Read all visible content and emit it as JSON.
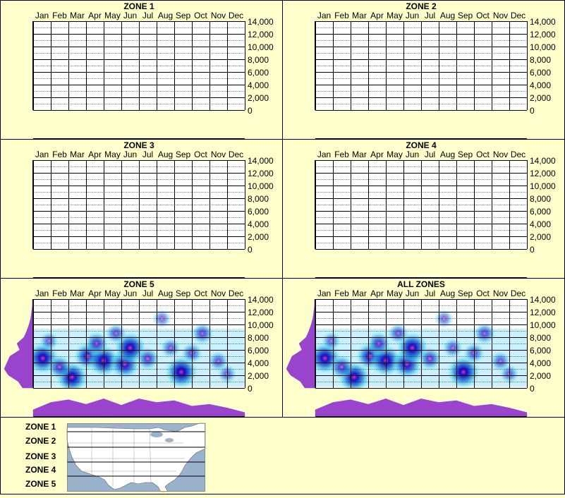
{
  "months": [
    "Jan",
    "Feb",
    "Mar",
    "Apr",
    "May",
    "Jun",
    "Jul",
    "Aug",
    "Sep",
    "Oct",
    "Nov",
    "Dec"
  ],
  "yticks": [
    "14,000",
    "12,000",
    "10,000",
    "8,000",
    "6,000",
    "4,000",
    "2,000",
    "0"
  ],
  "chart_data": [
    {
      "type": "heatmap",
      "title": "ZONE 1",
      "ylim": [
        0,
        14000
      ],
      "hotspots": [],
      "month_profile": [],
      "elev_profile": []
    },
    {
      "type": "heatmap",
      "title": "ZONE 2",
      "ylim": [
        0,
        14000
      ],
      "hotspots": [],
      "month_profile": [],
      "elev_profile": []
    },
    {
      "type": "heatmap",
      "title": "ZONE 3",
      "ylim": [
        0,
        14000
      ],
      "hotspots": [],
      "month_profile": [],
      "elev_profile": []
    },
    {
      "type": "heatmap",
      "title": "ZONE 4",
      "ylim": [
        0,
        14000
      ],
      "hotspots": [],
      "month_profile": [],
      "elev_profile": []
    },
    {
      "type": "heatmap",
      "title": "ZONE 5",
      "ylim": [
        0,
        14000
      ],
      "hotspots": [
        {
          "month": 0.55,
          "elev": 4700,
          "level": 0.95
        },
        {
          "month": 2.2,
          "elev": 1700,
          "level": 0.95
        },
        {
          "month": 3.1,
          "elev": 5000,
          "level": 0.75
        },
        {
          "month": 4.0,
          "elev": 4300,
          "level": 0.95
        },
        {
          "month": 5.2,
          "elev": 3800,
          "level": 0.85
        },
        {
          "month": 5.5,
          "elev": 6300,
          "level": 0.95
        },
        {
          "month": 8.4,
          "elev": 2500,
          "level": 1.0
        },
        {
          "month": 3.6,
          "elev": 7000,
          "level": 0.55
        },
        {
          "month": 7.3,
          "elev": 10900,
          "level": 0.3
        },
        {
          "month": 9.6,
          "elev": 8600,
          "level": 0.45
        },
        {
          "month": 1.5,
          "elev": 3300,
          "level": 0.55
        },
        {
          "month": 6.5,
          "elev": 4600,
          "level": 0.5
        },
        {
          "month": 10.5,
          "elev": 4200,
          "level": 0.35
        },
        {
          "month": 9.0,
          "elev": 5500,
          "level": 0.4
        },
        {
          "month": 0.9,
          "elev": 7400,
          "level": 0.3
        },
        {
          "month": 11.0,
          "elev": 2200,
          "level": 0.3
        },
        {
          "month": 4.7,
          "elev": 8600,
          "level": 0.4
        },
        {
          "month": 7.8,
          "elev": 6300,
          "level": 0.35
        }
      ],
      "month_profile": [
        0.35,
        0.75,
        0.9,
        0.65,
        0.95,
        0.6,
        0.95,
        0.75,
        0.85,
        0.55,
        0.65,
        0.45,
        0.2
      ],
      "elev_profile": [
        0.35,
        0.5,
        0.85,
        1.0,
        0.9,
        0.8,
        0.45,
        0.55,
        0.3,
        0.2,
        0.12,
        0.06,
        0.03,
        0.0,
        0.0
      ]
    },
    {
      "type": "heatmap",
      "title": "ALL ZONES",
      "ylim": [
        0,
        14000
      ],
      "hotspots": [
        {
          "month": 0.55,
          "elev": 4700,
          "level": 0.95
        },
        {
          "month": 2.2,
          "elev": 1700,
          "level": 0.95
        },
        {
          "month": 3.1,
          "elev": 5000,
          "level": 0.75
        },
        {
          "month": 4.0,
          "elev": 4300,
          "level": 0.95
        },
        {
          "month": 5.2,
          "elev": 3800,
          "level": 0.85
        },
        {
          "month": 5.5,
          "elev": 6300,
          "level": 0.95
        },
        {
          "month": 8.4,
          "elev": 2500,
          "level": 1.0
        },
        {
          "month": 3.6,
          "elev": 7000,
          "level": 0.55
        },
        {
          "month": 7.3,
          "elev": 10900,
          "level": 0.3
        },
        {
          "month": 9.6,
          "elev": 8600,
          "level": 0.45
        },
        {
          "month": 1.5,
          "elev": 3300,
          "level": 0.55
        },
        {
          "month": 6.5,
          "elev": 4600,
          "level": 0.5
        },
        {
          "month": 10.5,
          "elev": 4200,
          "level": 0.35
        },
        {
          "month": 9.0,
          "elev": 5500,
          "level": 0.4
        },
        {
          "month": 0.9,
          "elev": 7400,
          "level": 0.3
        },
        {
          "month": 11.0,
          "elev": 2200,
          "level": 0.3
        },
        {
          "month": 4.7,
          "elev": 8600,
          "level": 0.4
        },
        {
          "month": 7.8,
          "elev": 6300,
          "level": 0.35
        }
      ],
      "month_profile": [
        0.35,
        0.75,
        0.9,
        0.65,
        0.95,
        0.6,
        0.95,
        0.75,
        0.85,
        0.55,
        0.65,
        0.45,
        0.2
      ],
      "elev_profile": [
        0.35,
        0.5,
        0.85,
        1.0,
        0.9,
        0.8,
        0.45,
        0.55,
        0.3,
        0.2,
        0.12,
        0.06,
        0.03,
        0.0,
        0.0
      ]
    }
  ],
  "legend": {
    "zones": [
      "ZONE 1",
      "ZONE 2",
      "ZONE 3",
      "ZONE 4",
      "ZONE 5"
    ]
  },
  "colors": {
    "background": "#ffffcc",
    "profile": "#9944cc",
    "grid": "#000000",
    "water": "#9ab2cc",
    "land": "#ffffff"
  }
}
